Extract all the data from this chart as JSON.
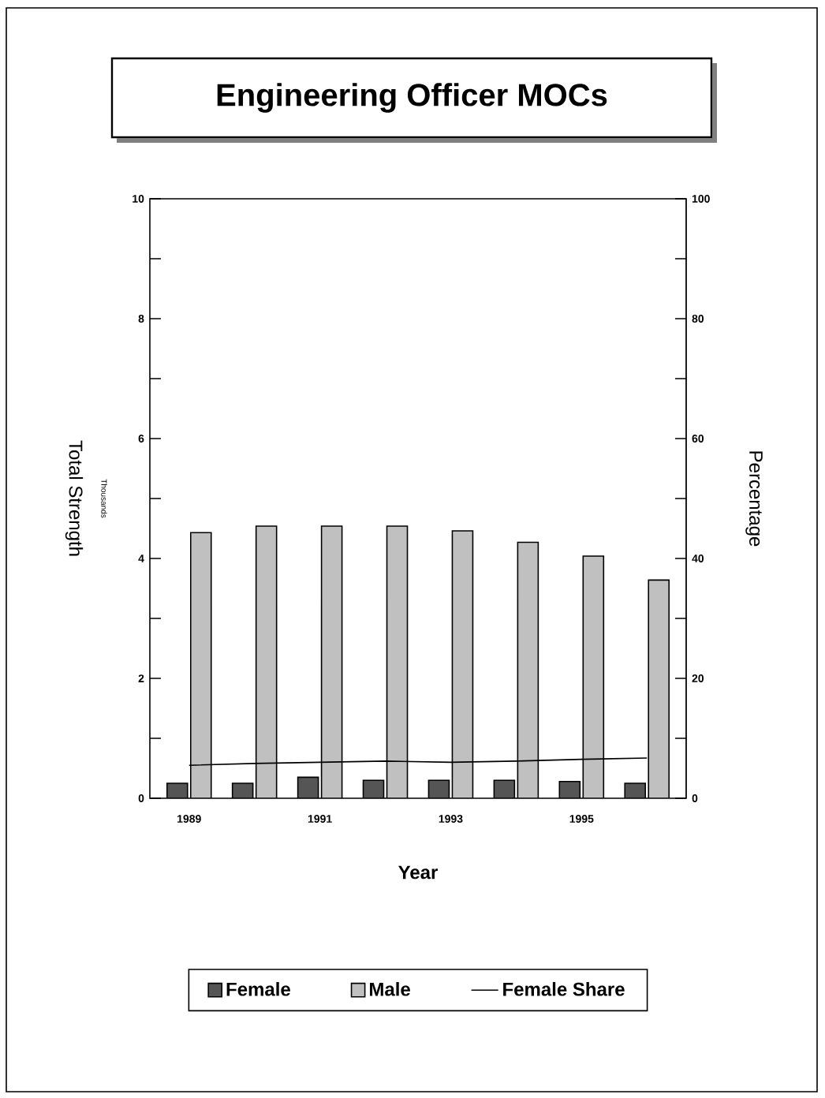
{
  "chart_data": {
    "type": "bar",
    "title": "Engineering Officer MOCs",
    "xlabel": "Year",
    "ylabel": "Total Strength",
    "y2label": "Percentage",
    "annotations": [
      "Thousands"
    ],
    "categories": [
      "1989",
      null,
      "1991",
      null,
      "1993",
      null,
      "1995",
      null
    ],
    "series": [
      {
        "name": "Female",
        "color": "#555555",
        "values": [
          0.25,
          0.25,
          0.35,
          0.3,
          0.3,
          0.3,
          0.28,
          0.25
        ]
      },
      {
        "name": "Male",
        "color": "#c0c0c0",
        "values": [
          4.43,
          4.54,
          4.54,
          4.54,
          4.46,
          4.27,
          4.04,
          3.64
        ]
      },
      {
        "name": "Female Share",
        "type": "line",
        "axis": "y2",
        "color": "#000000",
        "values": [
          5.5,
          5.8,
          6.0,
          6.2,
          6.0,
          6.2,
          6.5,
          6.7
        ]
      }
    ],
    "ylim": [
      0,
      10
    ],
    "yticks": [
      0,
      {
        "value": 1,
        "label": null
      },
      2,
      {
        "value": 3,
        "label": null
      },
      4,
      {
        "value": 5,
        "label": null
      },
      6,
      {
        "value": 7,
        "label": null
      },
      8,
      {
        "value": 9,
        "label": null
      },
      10
    ],
    "y2lim": [
      0,
      100
    ],
    "y2ticks": [
      0,
      {
        "value": 10,
        "label": null
      },
      20,
      {
        "value": 30,
        "label": null
      },
      40,
      {
        "value": 50,
        "label": null
      },
      60,
      {
        "value": 70,
        "label": null
      },
      80,
      {
        "value": 90,
        "label": null
      },
      100
    ],
    "legend": "bottom"
  }
}
